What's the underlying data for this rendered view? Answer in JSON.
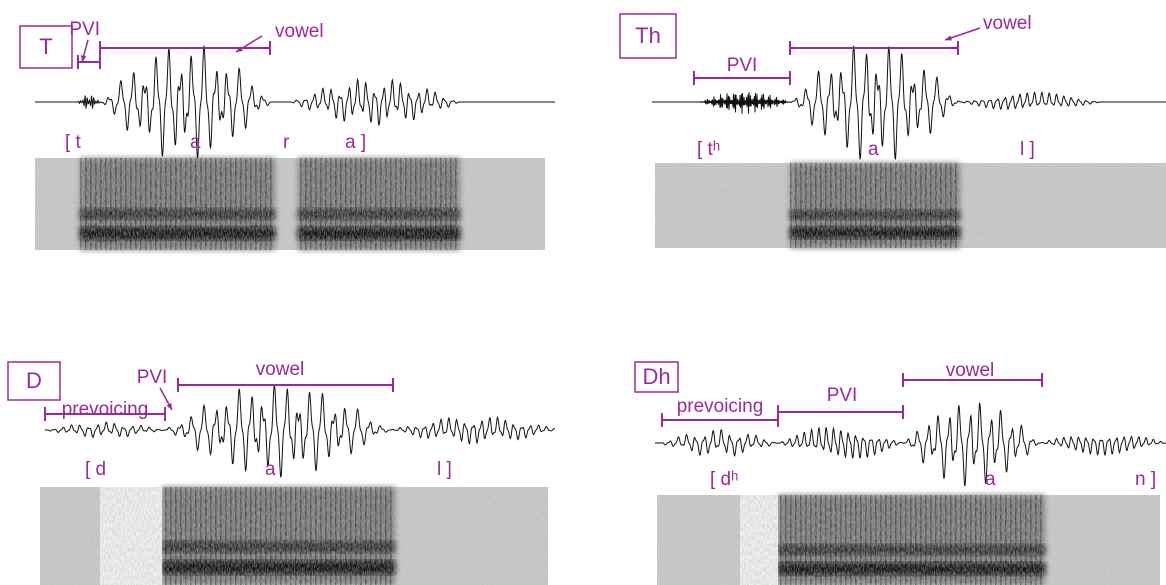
{
  "panels": [
    {
      "label": "T",
      "annotations": [
        "PVI",
        "vowel"
      ],
      "transcription": [
        "[ t",
        "a",
        "r",
        "a ]"
      ]
    },
    {
      "label": "Th",
      "annotations": [
        "PVI",
        "vowel"
      ],
      "transcription": [
        "[ tʰ",
        "a",
        "l ]"
      ]
    },
    {
      "label": "D",
      "annotations": [
        "prevoicing",
        "PVI",
        "vowel"
      ],
      "transcription": [
        "[ d",
        "a",
        "l ]"
      ]
    },
    {
      "label": "Dh",
      "annotations": [
        "prevoicing",
        "PVI",
        "vowel"
      ],
      "transcription": [
        "[ dʰ",
        "a",
        "n ]"
      ]
    }
  ]
}
